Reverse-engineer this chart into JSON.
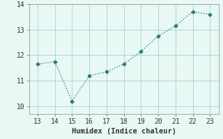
{
  "x": [
    13,
    14,
    15,
    16,
    17,
    18,
    19,
    20,
    21,
    22,
    23
  ],
  "y": [
    11.65,
    11.75,
    10.2,
    11.2,
    11.35,
    11.65,
    12.15,
    12.75,
    13.15,
    13.7,
    13.6
  ],
  "line_color": "#2e7d6e",
  "marker": "D",
  "marker_size": 2.5,
  "line_width": 1.0,
  "background_color": "#e8f8f5",
  "grid_color": "#aed8d0",
  "xlabel": "Humidex (Indice chaleur)",
  "xlabel_fontsize": 7.5,
  "tick_fontsize": 7,
  "xlim": [
    12.5,
    23.5
  ],
  "ylim": [
    9.7,
    14.0
  ],
  "xticks": [
    13,
    14,
    15,
    16,
    17,
    18,
    19,
    20,
    21,
    22,
    23
  ],
  "yticks": [
    10,
    11,
    12,
    13,
    14
  ]
}
